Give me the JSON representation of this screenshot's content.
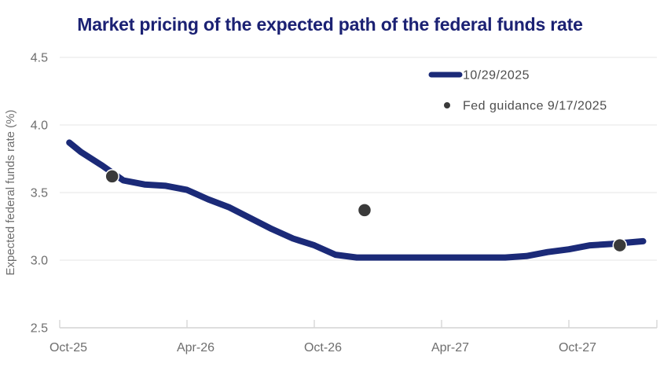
{
  "chart": {
    "title": "Market pricing of the expected path of the federal funds rate"
  },
  "chart_data": {
    "type": "line",
    "title": "Market pricing of the expected path of the federal funds rate",
    "xlabel": "",
    "ylabel": "Expected federal funds rate (%)",
    "ylim": [
      2.5,
      4.5
    ],
    "yticks": [
      4.5,
      4.0,
      3.5,
      3.0,
      2.5
    ],
    "xticks": [
      {
        "label": "Oct-25",
        "t": 0
      },
      {
        "label": "Apr-26",
        "t": 6
      },
      {
        "label": "Oct-26",
        "t": 12
      },
      {
        "label": "Apr-27",
        "t": 18
      },
      {
        "label": "Oct-27",
        "t": 24
      }
    ],
    "grid": "horizontal",
    "legend_position": "top-right",
    "colors": {
      "title": "#1b2173",
      "grid": "#e9e9e9",
      "axis": "#d4d4d4",
      "tick_text": "#6e6e6e",
      "legend_text": "#4d4d4d"
    },
    "series": [
      {
        "name": "10/29/2025",
        "type": "line",
        "color": "#1b2a78",
        "points": [
          {
            "date": "Oct-25",
            "t": 0.45,
            "value": 3.87
          },
          {
            "date": "Nov-25",
            "t": 1,
            "value": 3.8
          },
          {
            "date": "Dec-25",
            "t": 2,
            "value": 3.7
          },
          {
            "date": "Jan-26",
            "t": 3,
            "value": 3.59
          },
          {
            "date": "Feb-26",
            "t": 4,
            "value": 3.56
          },
          {
            "date": "Mar-26",
            "t": 5,
            "value": 3.55
          },
          {
            "date": "Apr-26",
            "t": 6,
            "value": 3.52
          },
          {
            "date": "May-26",
            "t": 7,
            "value": 3.45
          },
          {
            "date": "Jun-26",
            "t": 8,
            "value": 3.39
          },
          {
            "date": "Jul-26",
            "t": 9,
            "value": 3.31
          },
          {
            "date": "Aug-26",
            "t": 10,
            "value": 3.23
          },
          {
            "date": "Sep-26",
            "t": 11,
            "value": 3.16
          },
          {
            "date": "Oct-26",
            "t": 12,
            "value": 3.11
          },
          {
            "date": "Nov-26",
            "t": 13,
            "value": 3.04
          },
          {
            "date": "Dec-26",
            "t": 14,
            "value": 3.02
          },
          {
            "date": "Jan-27",
            "t": 15,
            "value": 3.02
          },
          {
            "date": "Feb-27",
            "t": 16,
            "value": 3.02
          },
          {
            "date": "Mar-27",
            "t": 17,
            "value": 3.02
          },
          {
            "date": "Apr-27",
            "t": 18,
            "value": 3.02
          },
          {
            "date": "May-27",
            "t": 19,
            "value": 3.02
          },
          {
            "date": "Jun-27",
            "t": 20,
            "value": 3.02
          },
          {
            "date": "Jul-27",
            "t": 21,
            "value": 3.02
          },
          {
            "date": "Aug-27",
            "t": 22,
            "value": 3.03
          },
          {
            "date": "Sep-27",
            "t": 23,
            "value": 3.06
          },
          {
            "date": "Oct-27",
            "t": 24,
            "value": 3.08
          },
          {
            "date": "Nov-27",
            "t": 25,
            "value": 3.11
          },
          {
            "date": "Dec-27",
            "t": 26,
            "value": 3.12
          },
          {
            "date": "Jan-28",
            "t": 27.5,
            "value": 3.14
          }
        ]
      },
      {
        "name": "Fed guidance 9/17/2025",
        "type": "scatter",
        "color": "#3a3a3a",
        "points": [
          {
            "date": "Dec-25",
            "t": 2.47,
            "value": 3.62
          },
          {
            "date": "Dec-26",
            "t": 14.37,
            "value": 3.37
          },
          {
            "date": "Dec-27",
            "t": 26.4,
            "value": 3.11
          }
        ]
      }
    ]
  }
}
